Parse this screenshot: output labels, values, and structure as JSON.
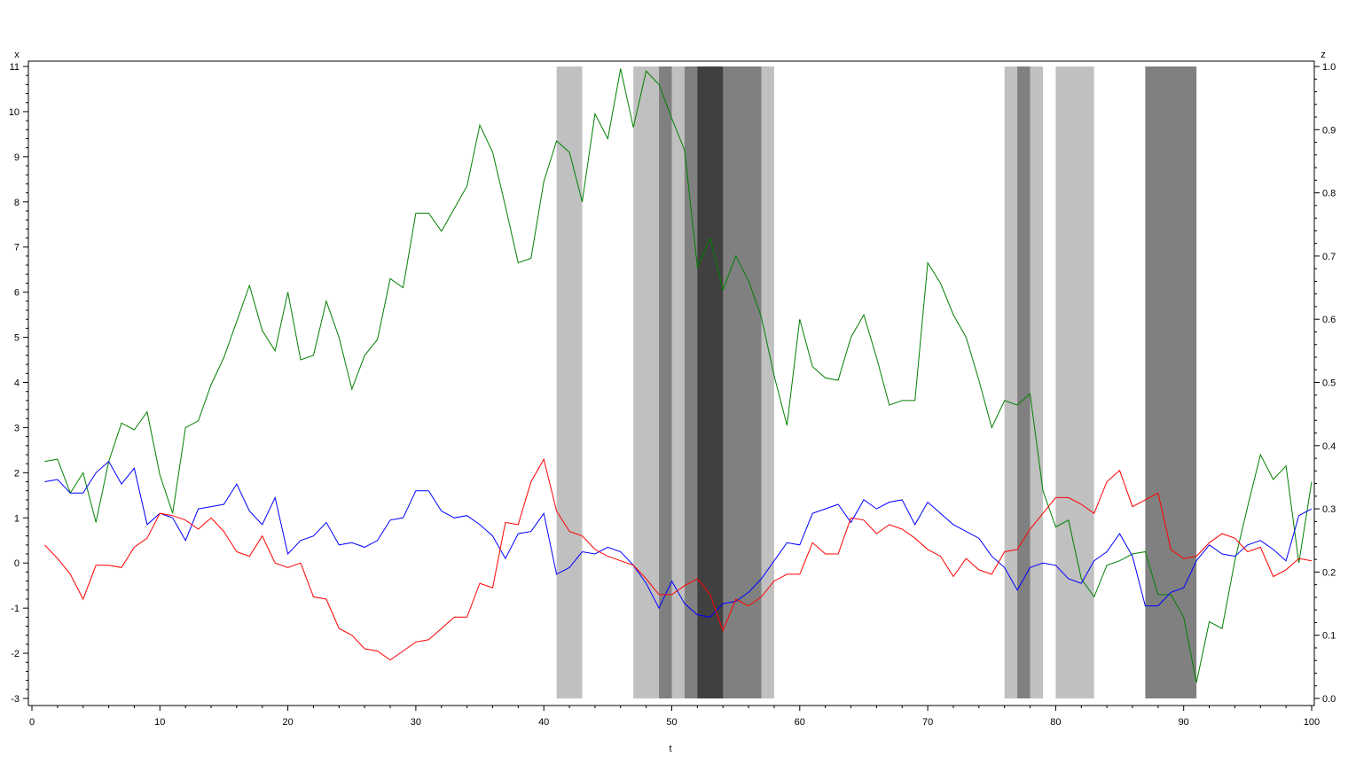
{
  "chart_data": {
    "type": "line",
    "xlabel": "t",
    "ylabel_left": "x",
    "ylabel_right": "z",
    "xlim": [
      0,
      100
    ],
    "ylim_left": [
      -3,
      11
    ],
    "ylim_right": [
      0.0,
      1.0
    ],
    "x_ticks": [
      0,
      10,
      20,
      30,
      40,
      50,
      60,
      70,
      80,
      90,
      100
    ],
    "y_ticks_left": [
      -3,
      -2,
      -1,
      0,
      1,
      2,
      3,
      4,
      5,
      6,
      7,
      8,
      9,
      10,
      11
    ],
    "y_ticks_right": [
      "0.0",
      "0.1",
      "0.2",
      "0.3",
      "0.4",
      "0.5",
      "0.6",
      "0.7",
      "0.8",
      "0.9",
      "1.0"
    ],
    "grid": false,
    "shaded_regions": [
      {
        "start": 41,
        "end": 43,
        "level": "light"
      },
      {
        "start": 47,
        "end": 58,
        "level": "light"
      },
      {
        "start": 49,
        "end": 50,
        "level": "medium"
      },
      {
        "start": 51,
        "end": 57,
        "level": "medium"
      },
      {
        "start": 52,
        "end": 54,
        "level": "dark"
      },
      {
        "start": 76,
        "end": 79,
        "level": "light"
      },
      {
        "start": 77,
        "end": 78,
        "level": "medium"
      },
      {
        "start": 80,
        "end": 83,
        "level": "light"
      },
      {
        "start": 87,
        "end": 91,
        "level": "medium"
      }
    ],
    "shade_colors": {
      "light": "#c0c0c0",
      "medium": "#808080",
      "dark": "#404040"
    },
    "series": [
      {
        "color": "#008000",
        "axis": "left",
        "x": [
          1,
          2,
          3,
          4,
          5,
          6,
          7,
          8,
          9,
          10,
          11,
          12,
          13,
          14,
          15,
          16,
          17,
          18,
          19,
          20,
          21,
          22,
          23,
          24,
          25,
          26,
          27,
          28,
          29,
          30,
          31,
          32,
          33,
          34,
          35,
          36,
          37,
          38,
          39,
          40,
          41,
          42,
          43,
          44,
          45,
          46,
          47,
          48,
          49,
          50,
          51,
          52,
          53,
          54,
          55,
          56,
          57,
          58,
          59,
          60,
          61,
          62,
          63,
          64,
          65,
          66,
          67,
          68,
          69,
          70,
          71,
          72,
          73,
          74,
          75,
          76,
          77,
          78,
          79,
          80,
          81,
          82,
          83,
          84,
          85,
          86,
          87,
          88,
          89,
          90,
          91,
          92,
          93,
          94,
          95,
          96,
          97,
          98,
          99,
          100
        ],
        "values": [
          2.25,
          2.3,
          1.55,
          2.0,
          0.9,
          2.25,
          3.1,
          2.95,
          3.35,
          1.95,
          1.1,
          3.0,
          3.15,
          3.95,
          4.55,
          5.35,
          6.15,
          5.15,
          4.7,
          6.0,
          4.5,
          4.6,
          5.8,
          5.0,
          3.85,
          4.6,
          4.95,
          6.3,
          6.1,
          7.75,
          7.75,
          7.35,
          7.85,
          8.35,
          9.7,
          9.1,
          7.9,
          6.65,
          6.75,
          8.45,
          9.35,
          9.1,
          8.0,
          9.95,
          9.4,
          10.95,
          9.65,
          10.9,
          10.6,
          9.85,
          9.15,
          6.55,
          7.2,
          6.05,
          6.8,
          6.25,
          5.45,
          4.15,
          3.05,
          5.4,
          4.35,
          4.1,
          4.05,
          5.0,
          5.5,
          4.55,
          3.5,
          3.6,
          3.6,
          6.65,
          6.2,
          5.5,
          5.0,
          4.05,
          3.0,
          3.6,
          3.5,
          3.75,
          1.6,
          0.8,
          0.95,
          -0.35,
          -0.75,
          -0.05,
          0.05,
          0.2,
          0.25,
          -0.7,
          -0.7,
          -1.2,
          -2.65,
          -1.3,
          -1.45,
          0.05,
          1.25,
          2.4,
          1.85,
          2.15,
          0.0,
          1.8
        ]
      },
      {
        "color": "#0000ff",
        "axis": "left",
        "x": [
          1,
          2,
          3,
          4,
          5,
          6,
          7,
          8,
          9,
          10,
          11,
          12,
          13,
          14,
          15,
          16,
          17,
          18,
          19,
          20,
          21,
          22,
          23,
          24,
          25,
          26,
          27,
          28,
          29,
          30,
          31,
          32,
          33,
          34,
          35,
          36,
          37,
          38,
          39,
          40,
          41,
          42,
          43,
          44,
          45,
          46,
          47,
          48,
          49,
          50,
          51,
          52,
          53,
          54,
          55,
          56,
          57,
          58,
          59,
          60,
          61,
          62,
          63,
          64,
          65,
          66,
          67,
          68,
          69,
          70,
          71,
          72,
          73,
          74,
          75,
          76,
          77,
          78,
          79,
          80,
          81,
          82,
          83,
          84,
          85,
          86,
          87,
          88,
          89,
          90,
          91,
          92,
          93,
          94,
          95,
          96,
          97,
          98,
          99,
          100
        ],
        "values": [
          1.8,
          1.85,
          1.55,
          1.55,
          2.0,
          2.25,
          1.75,
          2.1,
          0.85,
          1.1,
          1.0,
          0.5,
          1.2,
          1.25,
          1.3,
          1.75,
          1.15,
          0.85,
          1.45,
          0.2,
          0.5,
          0.6,
          0.9,
          0.4,
          0.45,
          0.35,
          0.5,
          0.95,
          1.0,
          1.6,
          1.6,
          1.15,
          1.0,
          1.05,
          0.85,
          0.6,
          0.1,
          0.65,
          0.7,
          1.1,
          -0.25,
          -0.1,
          0.25,
          0.2,
          0.35,
          0.25,
          -0.05,
          -0.45,
          -1.0,
          -0.4,
          -0.9,
          -1.15,
          -1.2,
          -0.9,
          -0.85,
          -0.65,
          -0.35,
          0.05,
          0.45,
          0.4,
          1.1,
          1.2,
          1.3,
          0.9,
          1.4,
          1.2,
          1.35,
          1.4,
          0.85,
          1.35,
          1.1,
          0.85,
          0.7,
          0.55,
          0.15,
          -0.1,
          -0.6,
          -0.1,
          0.0,
          -0.05,
          -0.35,
          -0.45,
          0.05,
          0.25,
          0.65,
          0.15,
          -0.95,
          -0.95,
          -0.65,
          -0.55,
          0.05,
          0.4,
          0.2,
          0.15,
          0.4,
          0.5,
          0.3,
          0.05,
          1.05,
          1.2
        ]
      },
      {
        "color": "#ff0000",
        "axis": "left",
        "x": [
          1,
          2,
          3,
          4,
          5,
          6,
          7,
          8,
          9,
          10,
          11,
          12,
          13,
          14,
          15,
          16,
          17,
          18,
          19,
          20,
          21,
          22,
          23,
          24,
          25,
          26,
          27,
          28,
          29,
          30,
          31,
          32,
          33,
          34,
          35,
          36,
          37,
          38,
          39,
          40,
          41,
          42,
          43,
          44,
          45,
          46,
          47,
          48,
          49,
          50,
          51,
          52,
          53,
          54,
          55,
          56,
          57,
          58,
          59,
          60,
          61,
          62,
          63,
          64,
          65,
          66,
          67,
          68,
          69,
          70,
          71,
          72,
          73,
          74,
          75,
          76,
          77,
          78,
          79,
          80,
          81,
          82,
          83,
          84,
          85,
          86,
          87,
          88,
          89,
          90,
          91,
          92,
          93,
          94,
          95,
          96,
          97,
          98,
          99,
          100
        ],
        "values": [
          0.4,
          0.1,
          -0.25,
          -0.8,
          -0.05,
          -0.05,
          -0.1,
          0.35,
          0.55,
          1.1,
          1.05,
          0.95,
          0.75,
          1.0,
          0.7,
          0.25,
          0.15,
          0.6,
          0.0,
          -0.1,
          0.0,
          -0.75,
          -0.8,
          -1.45,
          -1.6,
          -1.9,
          -1.95,
          -2.15,
          -1.95,
          -1.75,
          -1.7,
          -1.45,
          -1.2,
          -1.2,
          -0.45,
          -0.55,
          0.9,
          0.85,
          1.8,
          2.3,
          1.15,
          0.7,
          0.6,
          0.3,
          0.15,
          0.05,
          -0.05,
          -0.35,
          -0.7,
          -0.7,
          -0.5,
          -0.35,
          -0.7,
          -1.5,
          -0.8,
          -0.95,
          -0.75,
          -0.4,
          -0.25,
          -0.25,
          0.45,
          0.2,
          0.2,
          1.0,
          0.95,
          0.65,
          0.85,
          0.75,
          0.55,
          0.3,
          0.15,
          -0.3,
          0.1,
          -0.15,
          -0.25,
          0.25,
          0.3,
          0.75,
          1.1,
          1.45,
          1.45,
          1.3,
          1.1,
          1.8,
          2.05,
          1.25,
          1.4,
          1.55,
          0.3,
          0.1,
          0.15,
          0.45,
          0.65,
          0.55,
          0.25,
          0.35,
          -0.3,
          -0.15,
          0.1,
          0.05
        ]
      }
    ]
  }
}
